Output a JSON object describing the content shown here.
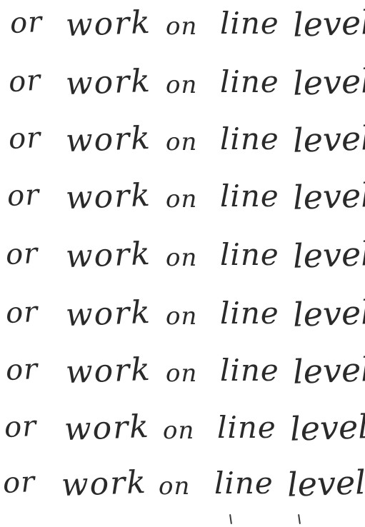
{
  "handwriting": {
    "lines": [
      {
        "words": [
          "or",
          "work",
          "on",
          "line",
          "level"
        ]
      },
      {
        "words": [
          "or",
          "work",
          "on",
          "line",
          "level"
        ]
      },
      {
        "words": [
          "or",
          "work",
          "on",
          "line",
          "level"
        ]
      },
      {
        "words": [
          "or",
          "work",
          "on",
          "line",
          "level"
        ]
      },
      {
        "words": [
          "or",
          "work",
          "on",
          "line",
          "level"
        ]
      },
      {
        "words": [
          "or",
          "work",
          "on",
          "line",
          "level"
        ]
      },
      {
        "words": [
          "or",
          "work",
          "on",
          "line",
          "level"
        ]
      },
      {
        "words": [
          "or",
          "work",
          "on",
          "line",
          "level"
        ]
      },
      {
        "words": [
          "or",
          "work",
          "on",
          "line",
          "level"
        ]
      }
    ],
    "ink_color": "#2a2a2a",
    "paper_color": "#ffffff"
  }
}
